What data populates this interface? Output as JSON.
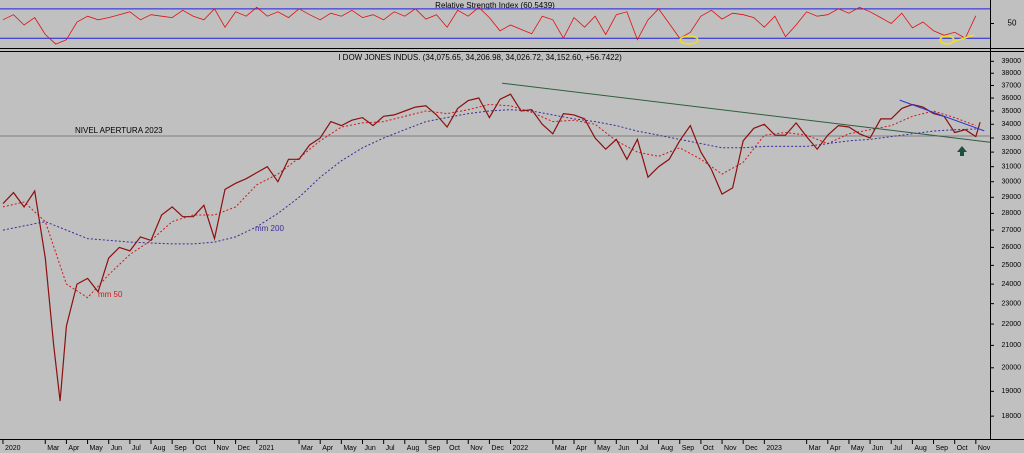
{
  "chart_data": {
    "type": "line",
    "title": "I DOW JONES INDUS. (34,075.65, 34,206.98, 34,026.72, 34,152.60, +56.7422)",
    "log_scale": true,
    "xlim": [
      -0.14,
      46.67
    ],
    "ylim": [
      17200,
      39800
    ],
    "yticks": [
      18000,
      19000,
      20000,
      21000,
      22000,
      23000,
      24000,
      25000,
      26000,
      27000,
      28000,
      29000,
      30000,
      31000,
      32000,
      33000,
      34000,
      35000,
      36000,
      37000,
      38000,
      39000
    ],
    "xticks": [
      {
        "value": 0,
        "label": "2020"
      },
      {
        "value": 2,
        "label": "Mar"
      },
      {
        "value": 3,
        "label": "Apr"
      },
      {
        "value": 4,
        "label": "May"
      },
      {
        "value": 5,
        "label": "Jun"
      },
      {
        "value": 6,
        "label": "Jul"
      },
      {
        "value": 7,
        "label": "Aug"
      },
      {
        "value": 8,
        "label": "Sep"
      },
      {
        "value": 9,
        "label": "Oct"
      },
      {
        "value": 10,
        "label": "Nov"
      },
      {
        "value": 11,
        "label": "Dec"
      },
      {
        "value": 12,
        "label": "2021"
      },
      {
        "value": 14,
        "label": "Mar"
      },
      {
        "value": 15,
        "label": "Apr"
      },
      {
        "value": 16,
        "label": "May"
      },
      {
        "value": 17,
        "label": "Jun"
      },
      {
        "value": 18,
        "label": "Jul"
      },
      {
        "value": 19,
        "label": "Aug"
      },
      {
        "value": 20,
        "label": "Sep"
      },
      {
        "value": 21,
        "label": "Oct"
      },
      {
        "value": 22,
        "label": "Nov"
      },
      {
        "value": 23,
        "label": "Dec"
      },
      {
        "value": 24,
        "label": "2022"
      },
      {
        "value": 26,
        "label": "Mar"
      },
      {
        "value": 27,
        "label": "Apr"
      },
      {
        "value": 28,
        "label": "May"
      },
      {
        "value": 29,
        "label": "Jun"
      },
      {
        "value": 30,
        "label": "Jul"
      },
      {
        "value": 31,
        "label": "Aug"
      },
      {
        "value": 32,
        "label": "Sep"
      },
      {
        "value": 33,
        "label": "Oct"
      },
      {
        "value": 34,
        "label": "Nov"
      },
      {
        "value": 35,
        "label": "Dec"
      },
      {
        "value": 36,
        "label": "2023"
      },
      {
        "value": 38,
        "label": "Mar"
      },
      {
        "value": 39,
        "label": "Apr"
      },
      {
        "value": 40,
        "label": "May"
      },
      {
        "value": 41,
        "label": "Jun"
      },
      {
        "value": 42,
        "label": "Jul"
      },
      {
        "value": 43,
        "label": "Aug"
      },
      {
        "value": 44,
        "label": "Sep"
      },
      {
        "value": 45,
        "label": "Oct"
      },
      {
        "value": 46,
        "label": "Nov"
      }
    ],
    "price": {
      "color": "#8b1010",
      "x": [
        0,
        0.5,
        1,
        1.5,
        2,
        2.4,
        2.7,
        3,
        3.5,
        4,
        4.5,
        5,
        5.5,
        6,
        6.5,
        7,
        7.5,
        8,
        8.5,
        9,
        9.5,
        10,
        10.5,
        11,
        11.5,
        12,
        12.5,
        13,
        13.5,
        14,
        14.5,
        15,
        15.5,
        16,
        16.5,
        17,
        17.5,
        18,
        18.5,
        19,
        19.5,
        20,
        20.5,
        21,
        21.5,
        22,
        22.5,
        23,
        23.5,
        24,
        24.5,
        25,
        25.5,
        26,
        26.5,
        27,
        27.5,
        28,
        28.5,
        29,
        29.5,
        30,
        30.5,
        31,
        31.5,
        32,
        32.5,
        33,
        33.5,
        34,
        34.5,
        35,
        35.5,
        36,
        36.5,
        37,
        37.5,
        38,
        38.5,
        39,
        39.5,
        40,
        40.5,
        41,
        41.5,
        42,
        42.5,
        43,
        43.5,
        44,
        44.5,
        45,
        45.5,
        46,
        46.2
      ],
      "values": [
        28600,
        29300,
        28400,
        29400,
        25400,
        21000,
        18600,
        21900,
        24000,
        24300,
        23600,
        25400,
        26000,
        25800,
        26600,
        26400,
        27900,
        28400,
        27800,
        27800,
        28500,
        26500,
        29500,
        29900,
        30200,
        30600,
        31000,
        30000,
        31500,
        31500,
        32500,
        33000,
        34200,
        33900,
        34300,
        34500,
        33900,
        34600,
        34700,
        35000,
        35300,
        35400,
        34700,
        33800,
        35200,
        35800,
        36000,
        34500,
        35900,
        36300,
        35000,
        35100,
        34000,
        33300,
        34800,
        34700,
        34400,
        33000,
        32200,
        32900,
        31500,
        32900,
        30300,
        31000,
        31500,
        32800,
        33900,
        32000,
        30800,
        29200,
        29600,
        32800,
        33700,
        34000,
        33200,
        33200,
        34100,
        33100,
        32200,
        33200,
        33900,
        33800,
        33300,
        33000,
        34400,
        34400,
        35200,
        35500,
        35300,
        34800,
        34600,
        33400,
        33600,
        33100,
        34152.6
      ]
    },
    "series": [
      {
        "name": "mm 50",
        "color": "#d01818",
        "x": [
          0,
          1,
          2,
          3,
          4,
          5,
          6,
          7,
          8,
          9,
          10,
          11,
          12,
          13,
          14,
          15,
          16,
          17,
          18,
          19,
          20,
          21,
          22,
          23,
          24,
          25,
          26,
          27,
          28,
          29,
          30,
          31,
          32,
          33,
          34,
          35,
          36,
          37,
          38,
          39,
          40,
          41,
          42,
          43,
          44,
          45,
          46
        ],
        "values": [
          28400,
          28700,
          27500,
          24000,
          23300,
          24500,
          25600,
          26400,
          27500,
          27900,
          27900,
          28400,
          29800,
          30500,
          31600,
          32800,
          33800,
          34100,
          34200,
          34600,
          35000,
          34800,
          35100,
          35500,
          35400,
          34900,
          34200,
          34300,
          34000,
          32800,
          32000,
          31700,
          32300,
          31500,
          30500,
          31300,
          33200,
          33400,
          33200,
          32600,
          33300,
          33600,
          33900,
          34600,
          35000,
          34500,
          33900
        ]
      },
      {
        "name": "mm 200",
        "color": "#3a2a9a",
        "x": [
          0,
          2,
          3,
          4,
          6,
          8,
          9,
          10,
          11,
          12,
          13,
          14,
          15,
          16,
          17,
          18,
          19,
          20,
          21,
          22,
          23,
          24,
          25,
          26,
          27,
          28,
          29,
          30,
          31,
          32,
          33,
          34,
          35,
          36,
          37,
          38,
          39,
          40,
          41,
          42,
          43,
          44,
          45,
          46
        ],
        "values": [
          27000,
          27500,
          27000,
          26500,
          26300,
          26200,
          26200,
          26300,
          26600,
          27200,
          28000,
          29000,
          30300,
          31400,
          32300,
          33000,
          33600,
          34200,
          34500,
          34800,
          35000,
          35100,
          35000,
          34700,
          34400,
          34200,
          33900,
          33500,
          33200,
          32900,
          32600,
          32300,
          32300,
          32400,
          32400,
          32400,
          32600,
          32800,
          32900,
          33100,
          33300,
          33500,
          33600,
          33650
        ]
      }
    ],
    "reference_line": {
      "label": "NIVEL APERTURA 2023",
      "value": 33147
    },
    "trendlines": [
      {
        "color": "#2e5e3e",
        "x": [
          23.6,
          46.67
        ],
        "values": [
          37180,
          32700
        ]
      },
      {
        "color": "#3333cc",
        "x": [
          42.4,
          46.4
        ],
        "values": [
          35840,
          33510
        ]
      }
    ],
    "rsi": {
      "title": "Relative Strength Index (60.5439)",
      "color": "#e01010",
      "ylim": [
        18,
        82
      ],
      "levels": [
        30,
        70
      ],
      "yticks": [
        50
      ],
      "x": [
        0,
        0.5,
        1,
        1.5,
        2,
        2.5,
        3,
        3.5,
        4,
        4.5,
        5,
        5.5,
        6,
        6.5,
        7,
        7.5,
        8,
        8.5,
        9,
        9.5,
        10,
        10.5,
        11,
        11.5,
        12,
        12.5,
        13,
        13.5,
        14,
        14.5,
        15,
        15.5,
        16,
        16.5,
        17,
        17.5,
        18,
        18.5,
        19,
        19.5,
        20,
        20.5,
        21,
        21.5,
        22,
        22.5,
        23,
        23.5,
        24,
        24.5,
        25,
        25.5,
        26,
        26.5,
        27,
        27.5,
        28,
        28.5,
        29,
        29.5,
        30,
        30.5,
        31,
        31.5,
        32,
        32.5,
        33,
        33.5,
        34,
        34.5,
        35,
        35.5,
        36,
        36.5,
        37,
        37.5,
        38,
        38.5,
        39,
        39.5,
        40,
        40.5,
        41,
        41.5,
        42,
        42.5,
        43,
        43.5,
        44,
        44.5,
        45,
        45.5,
        46
      ],
      "values": [
        55,
        62,
        48,
        58,
        35,
        22,
        28,
        52,
        60,
        55,
        58,
        62,
        66,
        55,
        62,
        60,
        58,
        68,
        60,
        55,
        70,
        45,
        66,
        60,
        72,
        60,
        66,
        58,
        70,
        62,
        55,
        64,
        60,
        68,
        58,
        62,
        55,
        66,
        60,
        70,
        56,
        62,
        45,
        68,
        60,
        72,
        58,
        40,
        48,
        42,
        36,
        60,
        55,
        30,
        58,
        45,
        60,
        35,
        62,
        66,
        28,
        55,
        70,
        50,
        30,
        38,
        60,
        68,
        56,
        64,
        62,
        58,
        45,
        60,
        32,
        48,
        66,
        60,
        62,
        70,
        64,
        72,
        66,
        58,
        50,
        64,
        44,
        52,
        40,
        34,
        38,
        30,
        60.5439
      ]
    }
  }
}
